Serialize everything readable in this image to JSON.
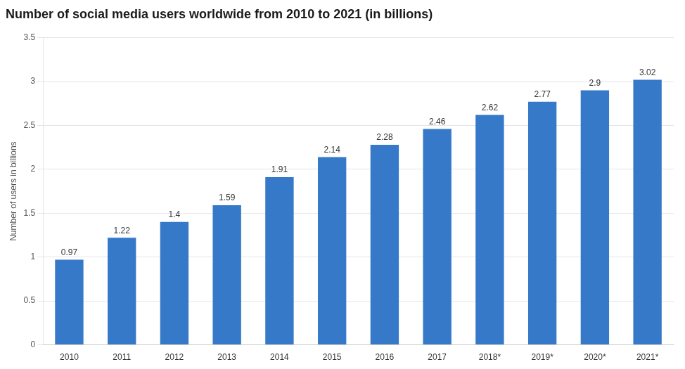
{
  "chart_data": {
    "type": "bar",
    "title": "Number of social media users worldwide from 2010 to 2021 (in billions)",
    "ylabel": "Number of users in billions",
    "categories": [
      "2010",
      "2011",
      "2012",
      "2013",
      "2014",
      "2015",
      "2016",
      "2017",
      "2018*",
      "2019*",
      "2020*",
      "2021*"
    ],
    "values": [
      0.97,
      1.22,
      1.4,
      1.59,
      1.91,
      2.14,
      2.28,
      2.46,
      2.62,
      2.77,
      2.9,
      3.02
    ],
    "color": "#3579c8",
    "ylim": [
      0,
      3.5
    ],
    "yticks": [
      0,
      0.5,
      1,
      1.5,
      2,
      2.5,
      3,
      3.5
    ],
    "grid": true,
    "data_labels": true
  }
}
